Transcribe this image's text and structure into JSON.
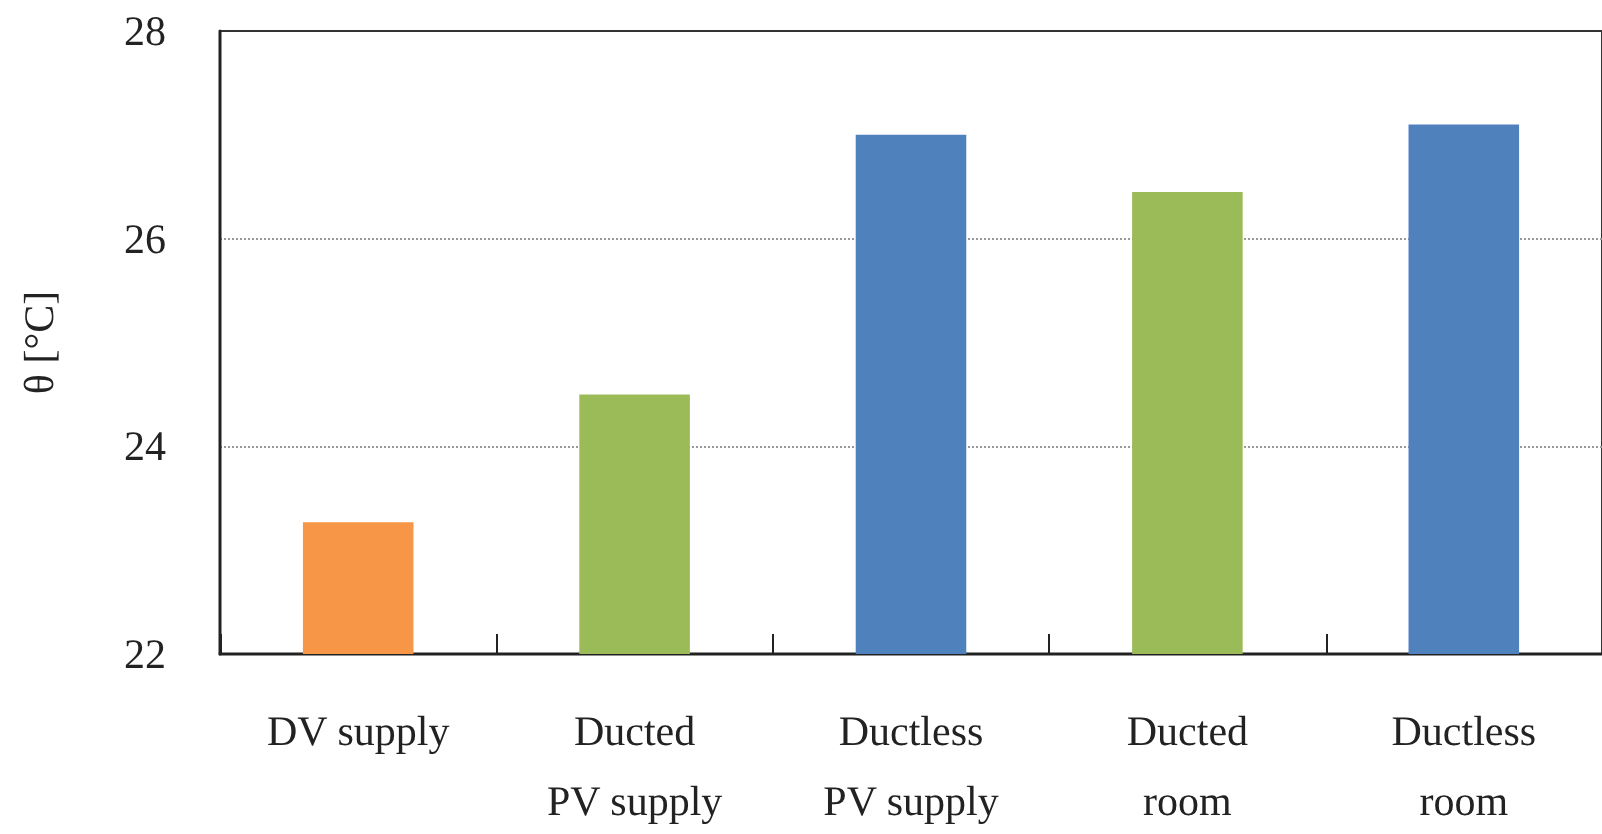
{
  "chart_data": {
    "type": "bar",
    "ylabel": "θ [°C]",
    "categories": [
      "DV supply",
      "Ducted\nPV supply",
      "Ductless\nPV supply",
      "Ducted\nroom",
      "Ductless\nroom"
    ],
    "values": [
      23.27,
      24.5,
      27.0,
      26.45,
      27.1
    ],
    "colors": [
      "#f79646",
      "#9bbb59",
      "#4f81bd",
      "#9bbb59",
      "#4f81bd"
    ],
    "ylim": [
      22,
      28
    ],
    "yticks": [
      22,
      24,
      26,
      28
    ],
    "grid": "y"
  }
}
